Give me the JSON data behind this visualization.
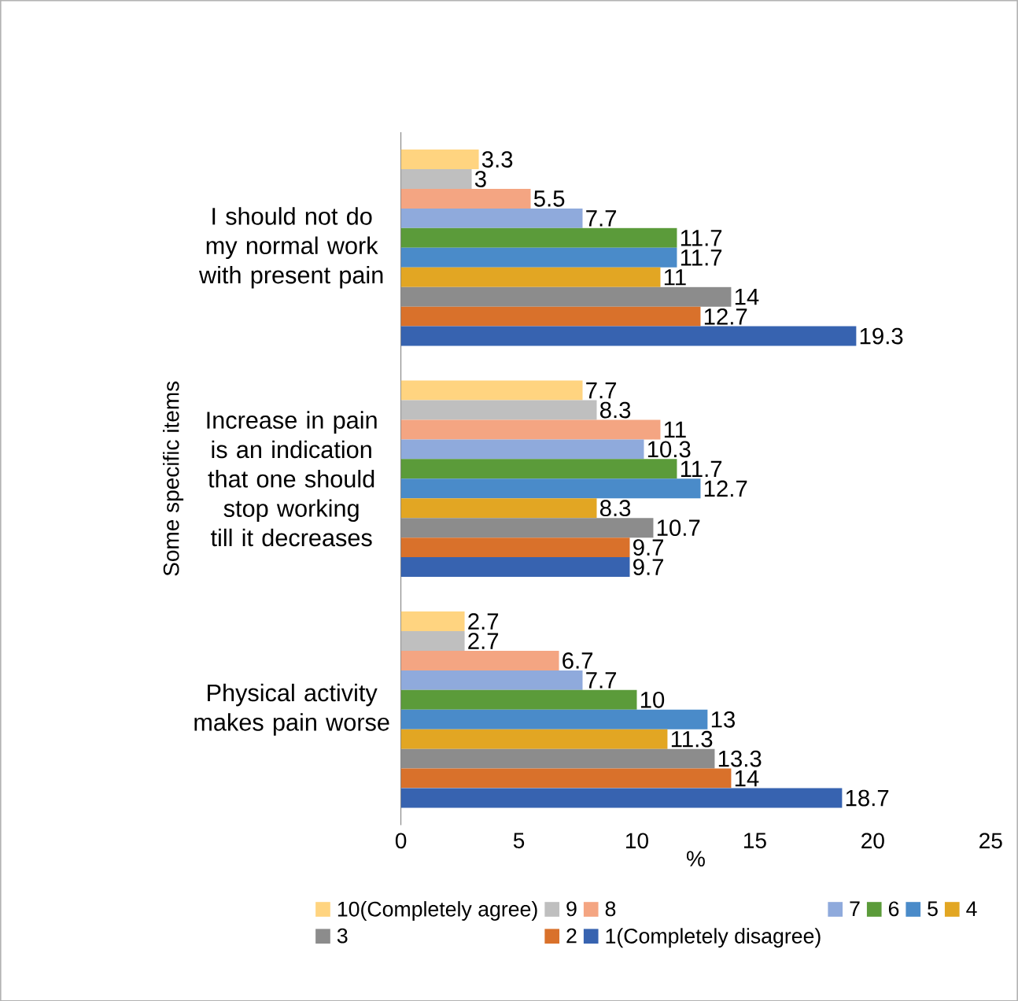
{
  "chart_data": {
    "type": "bar",
    "orientation": "horizontal",
    "xlabel": "%",
    "ylabel": "Some specific items",
    "categories": [
      "I should not do my normal work with present pain",
      "Increase in pain is an indication that one should stop working till it decreases",
      "Physical activity makes pain worse"
    ],
    "xlim": [
      0,
      25
    ],
    "xticks": [
      0,
      5,
      10,
      15,
      20,
      25
    ],
    "legend": "bottom",
    "data_labels": true,
    "series": [
      {
        "name": "10(Completely agree)",
        "color": "#ffd480",
        "values": [
          3.3,
          7.7,
          2.7
        ]
      },
      {
        "name": "9",
        "color": "#bfbfbf",
        "values": [
          3,
          8.3,
          2.7
        ]
      },
      {
        "name": "8",
        "color": "#f4a582",
        "values": [
          5.5,
          11,
          6.7
        ]
      },
      {
        "name": "7",
        "color": "#8faadc",
        "values": [
          7.7,
          10.3,
          7.7
        ]
      },
      {
        "name": "6",
        "color": "#5b9b3a",
        "values": [
          11.7,
          11.7,
          10
        ]
      },
      {
        "name": "5",
        "color": "#4a8bc9",
        "values": [
          11.7,
          12.7,
          13
        ]
      },
      {
        "name": "4",
        "color": "#e2a623",
        "values": [
          11,
          8.3,
          11.3
        ]
      },
      {
        "name": "3",
        "color": "#8c8c8c",
        "values": [
          14,
          10.7,
          13.3
        ]
      },
      {
        "name": "2",
        "color": "#d9712b",
        "values": [
          12.7,
          9.7,
          14
        ]
      },
      {
        "name": "1(Completely disagree)",
        "color": "#3763b0",
        "values": [
          19.3,
          9.7,
          18.7
        ]
      }
    ]
  }
}
